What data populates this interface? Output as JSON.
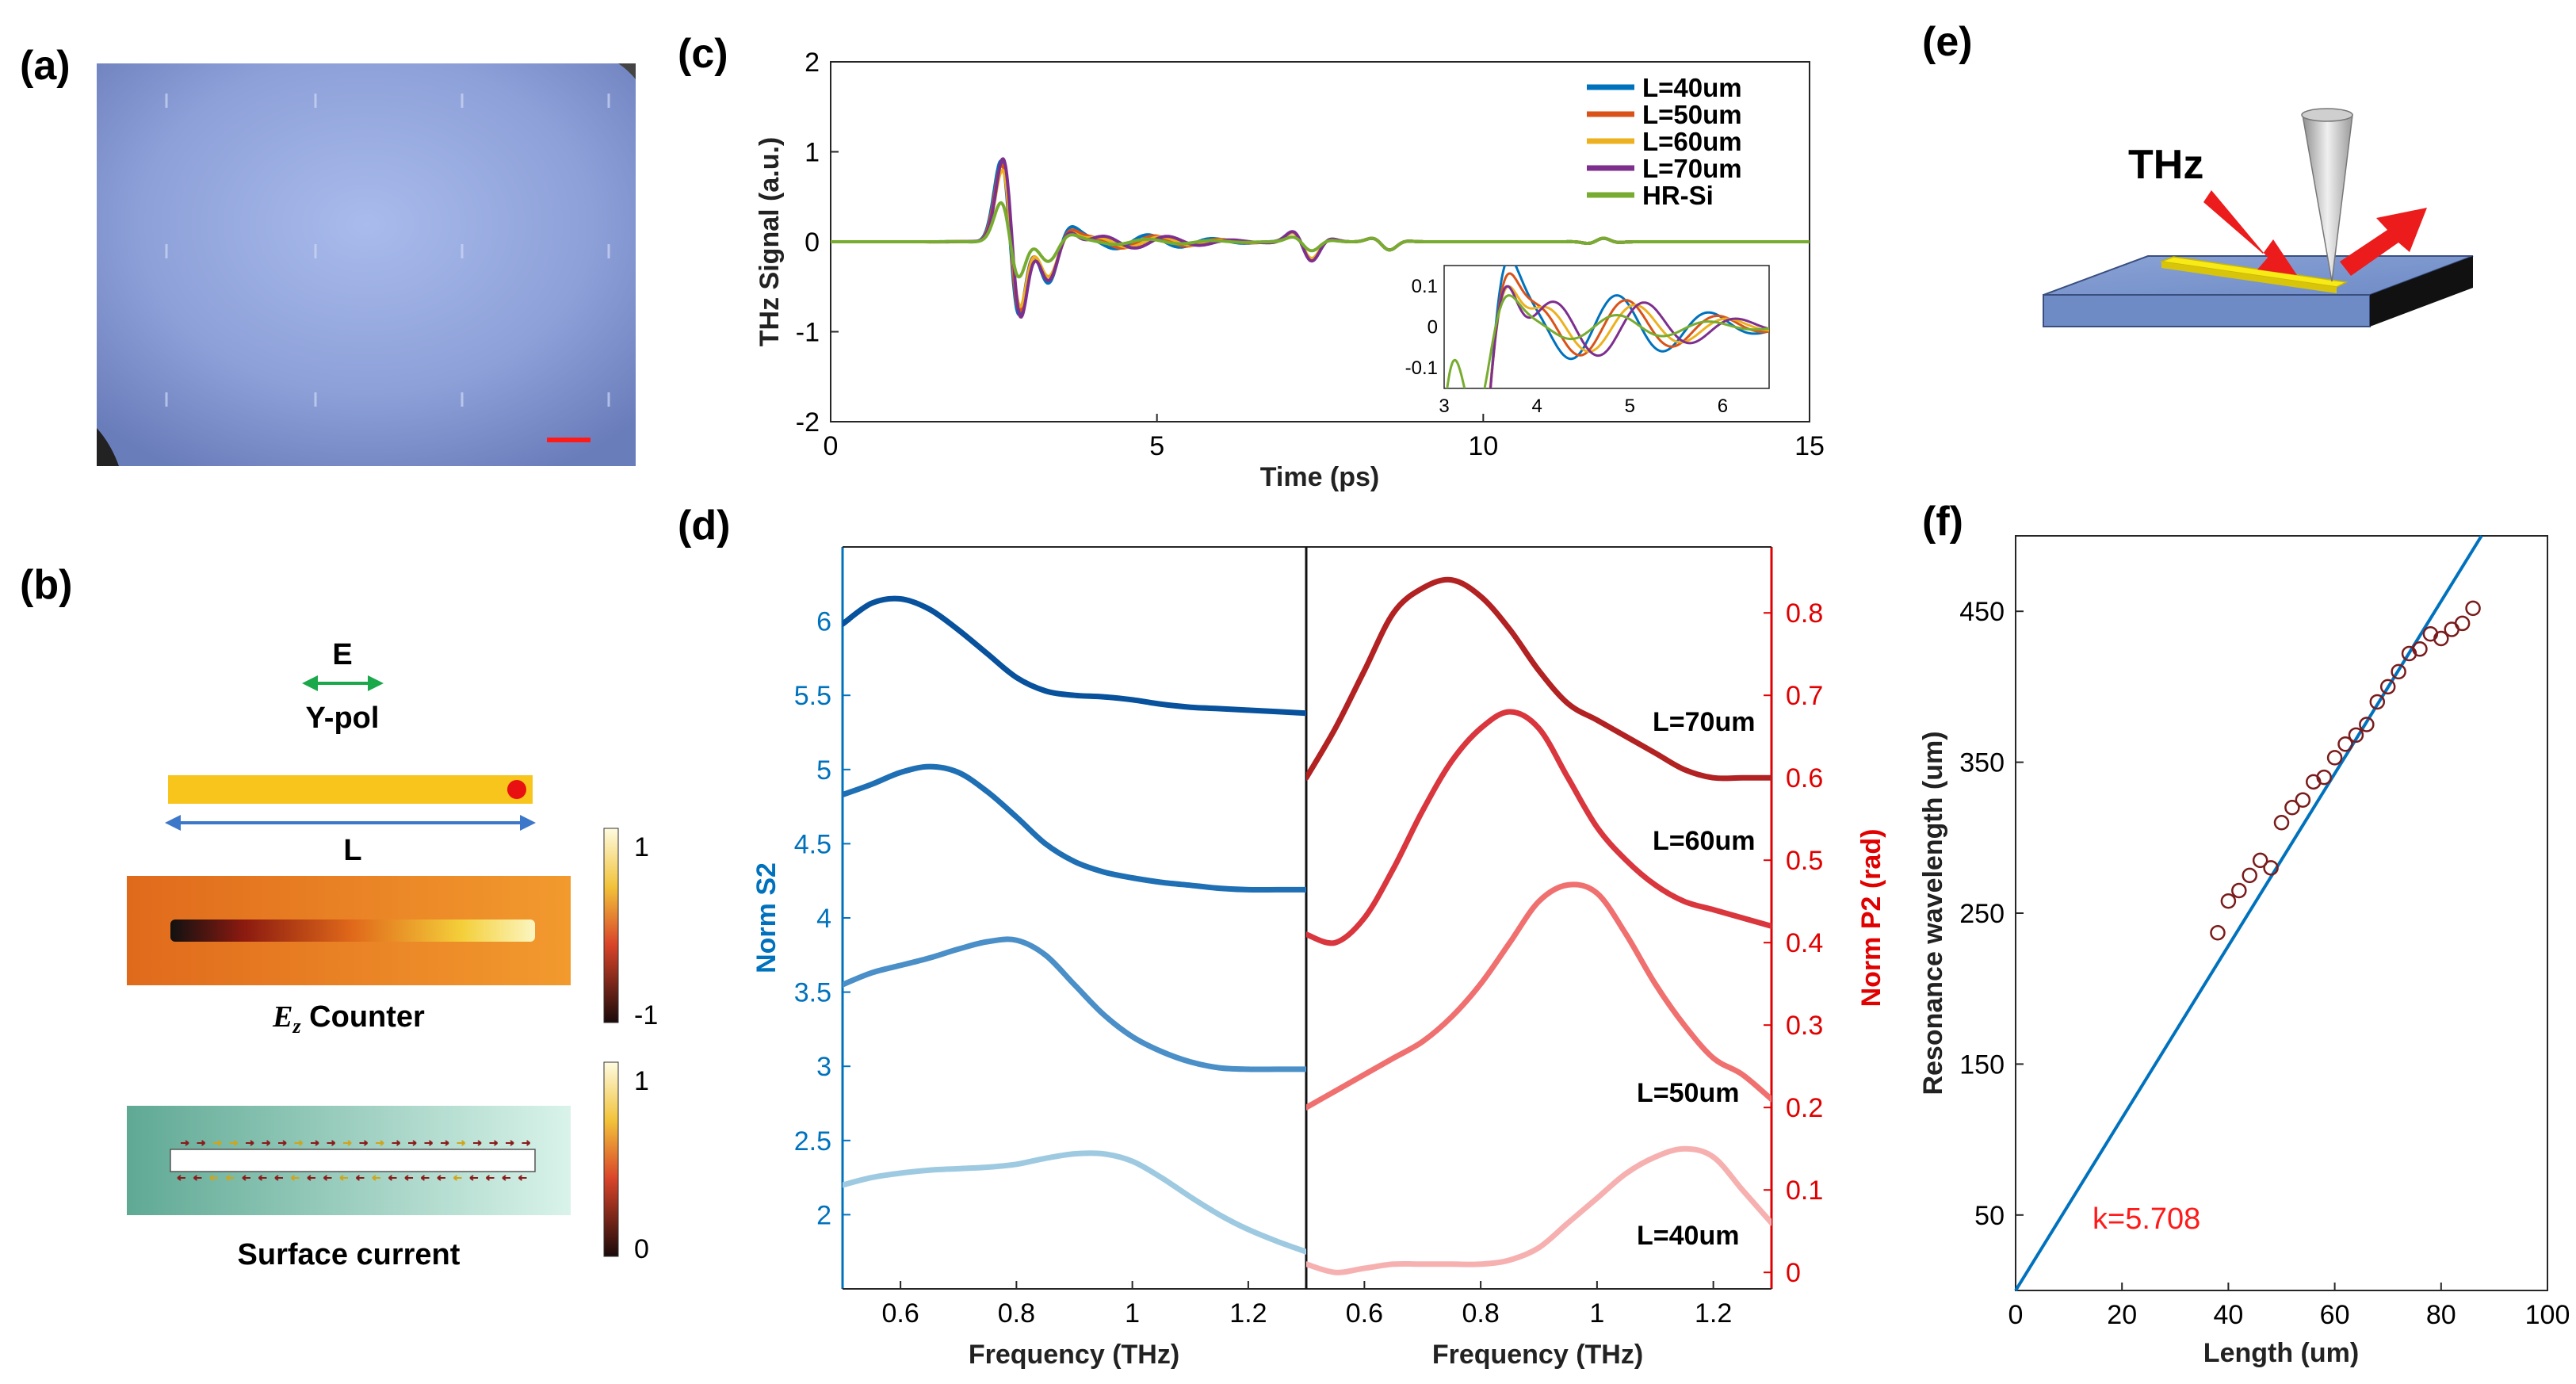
{
  "panels": {
    "a": "(a)",
    "b": "(b)",
    "c": "(c)",
    "d": "(d)",
    "e": "(e)",
    "f": "(f)"
  },
  "panel_b": {
    "e_label": "E",
    "pol_label": "Y-pol",
    "length_label": "L",
    "ez_caption_var": "E",
    "ez_caption_sub": "z",
    "ez_caption_text": " Counter",
    "ez_colorbar_max": "1",
    "ez_colorbar_min": "-1",
    "sc_caption": "Surface current",
    "sc_colorbar_max": "1",
    "sc_colorbar_min": "0"
  },
  "panel_e": {
    "thz_label": "THz"
  },
  "colors": {
    "blue": "#0072BD",
    "orange": "#D95319",
    "yellow": "#EDB120",
    "purple": "#7E2F8E",
    "green": "#77AC30",
    "red": "#ff0000",
    "microscope": "#7f93cf",
    "rod": "#f7d21b"
  },
  "chart_data": [
    {
      "id": "c",
      "type": "line",
      "xlabel": "Time (ps)",
      "ylabel": "THz Signal (a.u.)",
      "xlim": [
        0,
        15
      ],
      "ylim": [
        -2,
        2
      ],
      "xticks": [
        "0",
        "5",
        "10",
        "15"
      ],
      "yticks": [
        "-2",
        "-1",
        "0",
        "1",
        "2"
      ],
      "legend_position": "top-right",
      "series": [
        {
          "name": "L=40um",
          "color": "#0072BD",
          "amp": 1.62,
          "post": 0.08,
          "shift": 0.0
        },
        {
          "name": "L=50um",
          "color": "#D95319",
          "amp": 1.55,
          "post": 0.07,
          "shift": 0.05
        },
        {
          "name": "L=60um",
          "color": "#EDB120",
          "amp": 1.45,
          "post": 0.06,
          "shift": 0.1
        },
        {
          "name": "L=70um",
          "color": "#7E2F8E",
          "amp": 1.68,
          "post": 0.07,
          "shift": 0.15
        },
        {
          "name": "HR-Si",
          "color": "#77AC30",
          "amp": 0.78,
          "post": 0.03,
          "shift": 0.0
        }
      ],
      "inset": {
        "xlim": [
          3,
          6.5
        ],
        "ylim": [
          -0.15,
          0.15
        ],
        "xticks": [
          "3",
          "4",
          "5",
          "6"
        ],
        "yticks": [
          "0.1",
          "0",
          "-0.1"
        ]
      }
    },
    {
      "id": "d-left",
      "type": "line",
      "xlabel": "Frequency (THz)",
      "ylabel": "Norm S2",
      "xlim": [
        0.5,
        1.3
      ],
      "ylim": [
        1.5,
        6.5
      ],
      "xticks": [
        "0.6",
        "0.8",
        "1",
        "1.2"
      ],
      "yticks": [
        "2",
        "2.5",
        "3",
        "3.5",
        "4",
        "4.5",
        "5",
        "5.5",
        "6"
      ],
      "series": [
        {
          "name": "L=70um",
          "color": "#08519c",
          "x": [
            0.5,
            0.55,
            0.6,
            0.65,
            0.7,
            0.75,
            0.8,
            0.85,
            0.9,
            0.95,
            1.0,
            1.05,
            1.1,
            1.15,
            1.2,
            1.25,
            1.3
          ],
          "y": [
            5.98,
            6.12,
            6.15,
            6.08,
            5.94,
            5.78,
            5.62,
            5.53,
            5.5,
            5.49,
            5.47,
            5.44,
            5.42,
            5.41,
            5.4,
            5.39,
            5.38
          ]
        },
        {
          "name": "L=60um",
          "color": "#1f6fb4",
          "x": [
            0.5,
            0.55,
            0.6,
            0.65,
            0.7,
            0.75,
            0.8,
            0.85,
            0.9,
            0.95,
            1.0,
            1.05,
            1.1,
            1.15,
            1.2,
            1.25,
            1.3
          ],
          "y": [
            4.83,
            4.9,
            4.98,
            5.02,
            4.98,
            4.85,
            4.68,
            4.5,
            4.38,
            4.31,
            4.27,
            4.24,
            4.22,
            4.2,
            4.19,
            4.19,
            4.19
          ]
        },
        {
          "name": "L=50um",
          "color": "#4a8fc7",
          "x": [
            0.5,
            0.55,
            0.6,
            0.65,
            0.7,
            0.75,
            0.8,
            0.85,
            0.9,
            0.95,
            1.0,
            1.05,
            1.1,
            1.15,
            1.2,
            1.25,
            1.3
          ],
          "y": [
            3.55,
            3.63,
            3.68,
            3.73,
            3.79,
            3.84,
            3.85,
            3.75,
            3.55,
            3.35,
            3.2,
            3.1,
            3.03,
            2.99,
            2.98,
            2.98,
            2.98
          ]
        },
        {
          "name": "L=40um",
          "color": "#9ecae1",
          "x": [
            0.5,
            0.55,
            0.6,
            0.65,
            0.7,
            0.75,
            0.8,
            0.85,
            0.9,
            0.95,
            1.0,
            1.05,
            1.1,
            1.15,
            1.2,
            1.25,
            1.3
          ],
          "y": [
            2.2,
            2.25,
            2.28,
            2.3,
            2.31,
            2.32,
            2.34,
            2.38,
            2.41,
            2.41,
            2.36,
            2.25,
            2.12,
            2.0,
            1.9,
            1.82,
            1.75
          ]
        }
      ]
    },
    {
      "id": "d-right",
      "type": "line",
      "xlabel": "Frequency (THz)",
      "ylabel": "Norm P2 (rad)",
      "xlim": [
        0.5,
        1.3
      ],
      "ylim": [
        -0.02,
        0.88
      ],
      "xticks": [
        "0.6",
        "0.8",
        "1",
        "1.2"
      ],
      "yticks": [
        "0",
        "0.1",
        "0.2",
        "0.3",
        "0.4",
        "0.5",
        "0.6",
        "0.7",
        "0.8"
      ],
      "labels": [
        "L=70um",
        "L=60um",
        "L=50um",
        "L=40um"
      ],
      "series": [
        {
          "name": "L=70um",
          "color": "#b22222",
          "x": [
            0.5,
            0.55,
            0.6,
            0.65,
            0.7,
            0.75,
            0.8,
            0.85,
            0.9,
            0.95,
            1.0,
            1.05,
            1.1,
            1.15,
            1.2,
            1.25,
            1.3
          ],
          "y": [
            0.6,
            0.66,
            0.73,
            0.8,
            0.83,
            0.84,
            0.82,
            0.78,
            0.73,
            0.69,
            0.67,
            0.65,
            0.63,
            0.61,
            0.6,
            0.6,
            0.6
          ]
        },
        {
          "name": "L=60um",
          "color": "#d9363e",
          "x": [
            0.5,
            0.55,
            0.6,
            0.65,
            0.7,
            0.75,
            0.8,
            0.85,
            0.9,
            0.95,
            1.0,
            1.05,
            1.1,
            1.15,
            1.2,
            1.25,
            1.3
          ],
          "y": [
            0.41,
            0.4,
            0.43,
            0.49,
            0.56,
            0.62,
            0.66,
            0.68,
            0.66,
            0.6,
            0.54,
            0.5,
            0.47,
            0.45,
            0.44,
            0.43,
            0.42
          ]
        },
        {
          "name": "L=50um",
          "color": "#f07070",
          "x": [
            0.5,
            0.55,
            0.6,
            0.65,
            0.7,
            0.75,
            0.8,
            0.85,
            0.9,
            0.95,
            1.0,
            1.05,
            1.1,
            1.15,
            1.2,
            1.25,
            1.3
          ],
          "y": [
            0.2,
            0.22,
            0.24,
            0.26,
            0.28,
            0.31,
            0.35,
            0.4,
            0.45,
            0.47,
            0.46,
            0.41,
            0.35,
            0.3,
            0.26,
            0.24,
            0.21
          ]
        },
        {
          "name": "L=40um",
          "color": "#f7b0b0",
          "x": [
            0.5,
            0.55,
            0.6,
            0.65,
            0.7,
            0.75,
            0.8,
            0.85,
            0.9,
            0.95,
            1.0,
            1.05,
            1.1,
            1.15,
            1.2,
            1.25,
            1.3
          ],
          "y": [
            0.01,
            0.0,
            0.005,
            0.01,
            0.01,
            0.01,
            0.01,
            0.015,
            0.03,
            0.06,
            0.09,
            0.12,
            0.14,
            0.15,
            0.14,
            0.1,
            0.06
          ]
        }
      ]
    },
    {
      "id": "f",
      "type": "scatter",
      "xlabel": "Length (um)",
      "ylabel": "Resonance wavelength (um)",
      "xlim": [
        0,
        100
      ],
      "ylim": [
        0,
        500
      ],
      "xticks": [
        "0",
        "20",
        "40",
        "60",
        "80",
        "100"
      ],
      "yticks": [
        "50",
        "150",
        "250",
        "350",
        "450"
      ],
      "ytick_values": [
        50,
        150,
        250,
        350,
        450
      ],
      "fit_slope": 5.708,
      "fit_label": "k=5.708",
      "x": [
        38,
        40,
        42,
        44,
        46,
        48,
        50,
        52,
        54,
        56,
        58,
        60,
        62,
        64,
        66,
        68,
        70,
        72,
        74,
        76,
        78,
        80,
        82,
        84,
        86
      ],
      "y": [
        237,
        258,
        265,
        275,
        285,
        280,
        310,
        320,
        325,
        337,
        340,
        353,
        362,
        368,
        375,
        390,
        400,
        410,
        422,
        425,
        435,
        432,
        438,
        442,
        452
      ]
    }
  ]
}
